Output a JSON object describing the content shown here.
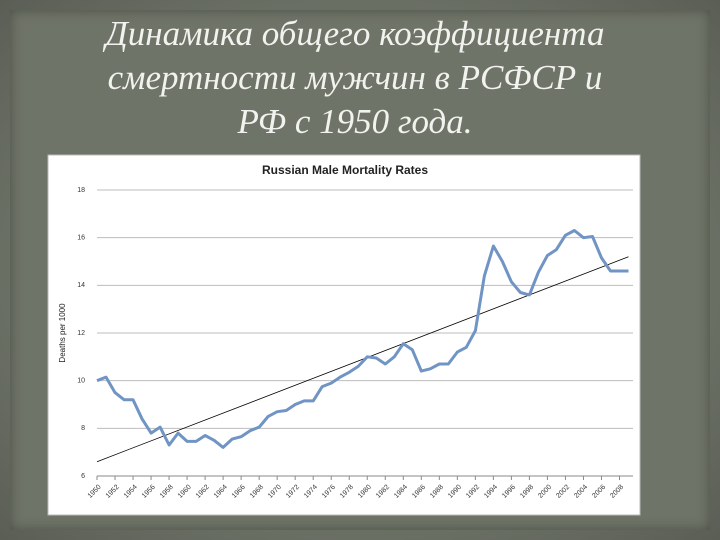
{
  "slide_title": [
    "Динамика общего коэффициента",
    "смертности мужчин в РСФСР и",
    "РФ с 1950 года."
  ],
  "chart_data": {
    "type": "line",
    "title": "Russian Male Mortality Rates",
    "y_label": "Deaths per 1000",
    "x": [
      1950,
      1951,
      1952,
      1953,
      1954,
      1955,
      1956,
      1957,
      1958,
      1959,
      1960,
      1961,
      1962,
      1963,
      1964,
      1965,
      1966,
      1967,
      1968,
      1969,
      1970,
      1971,
      1972,
      1973,
      1974,
      1975,
      1976,
      1977,
      1978,
      1979,
      1980,
      1981,
      1982,
      1983,
      1984,
      1985,
      1986,
      1987,
      1988,
      1989,
      1990,
      1991,
      1992,
      1993,
      1994,
      1995,
      1996,
      1997,
      1998,
      1999,
      2000,
      2001,
      2002,
      2003,
      2004,
      2005,
      2006,
      2007,
      2008,
      2009
    ],
    "values": [
      10.0,
      10.15,
      9.5,
      9.2,
      9.2,
      8.4,
      7.8,
      8.05,
      7.3,
      7.8,
      7.45,
      7.45,
      7.7,
      7.5,
      7.2,
      7.55,
      7.65,
      7.9,
      8.05,
      8.5,
      8.7,
      8.75,
      9.0,
      9.15,
      9.15,
      9.75,
      9.9,
      10.15,
      10.35,
      10.6,
      11.0,
      10.95,
      10.7,
      11.0,
      11.55,
      11.3,
      10.4,
      10.5,
      10.7,
      10.7,
      11.2,
      11.4,
      12.1,
      14.4,
      15.65,
      15.0,
      14.15,
      13.7,
      13.6,
      14.55,
      15.25,
      15.5,
      16.1,
      16.3,
      16.0,
      16.05,
      15.15,
      14.6,
      14.6,
      14.6
    ],
    "color": "#7094c4",
    "trendline": {
      "x": [
        1950,
        2009
      ],
      "values": [
        6.6,
        15.2
      ],
      "color": "#000000"
    },
    "xlim": [
      1950,
      2009.5
    ],
    "xticks": [
      1950,
      1952,
      1954,
      1956,
      1958,
      1960,
      1962,
      1964,
      1966,
      1968,
      1970,
      1972,
      1974,
      1976,
      1978,
      1980,
      1982,
      1984,
      1986,
      1988,
      1990,
      1992,
      1994,
      1996,
      1998,
      2000,
      2002,
      2004,
      2006,
      2008
    ],
    "ylim": [
      6,
      18
    ],
    "yticks": [
      6,
      8,
      10,
      12,
      14,
      16,
      18
    ],
    "grid": true
  }
}
